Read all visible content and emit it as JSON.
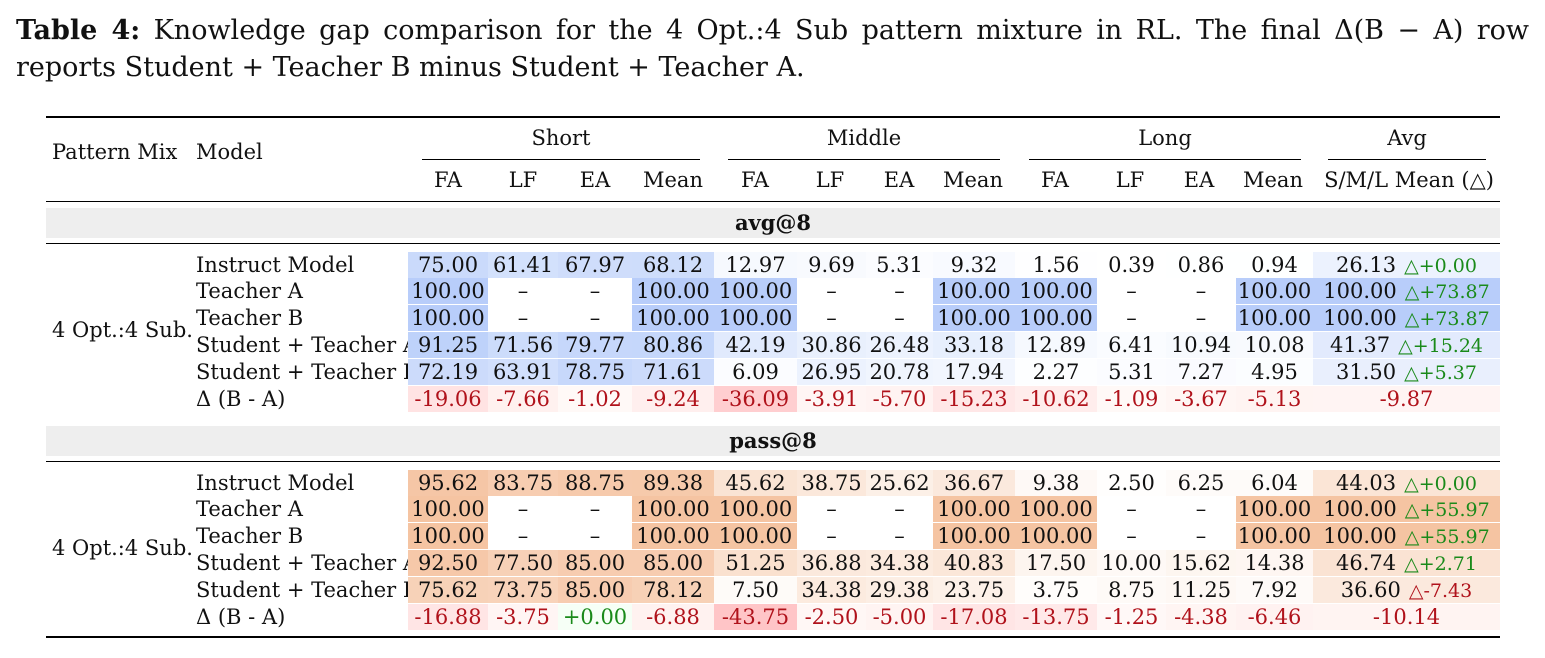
{
  "caption": {
    "label": "Table 4:",
    "text": " Knowledge gap comparison for the 4 Opt.:4 Sub pattern mixture in RL. The final Δ(B − A) row reports Student + Teacher B minus Student + Teacher A."
  },
  "header": {
    "pattern_mix": "Pattern Mix",
    "model": "Model",
    "groups": [
      "Short",
      "Middle",
      "Long",
      "Avg"
    ],
    "subcols": [
      "FA",
      "LF",
      "EA",
      "Mean",
      "FA",
      "LF",
      "EA",
      "Mean",
      "FA",
      "LF",
      "EA",
      "Mean"
    ],
    "avg_sub": "S/M/L Mean (△)"
  },
  "sections": [
    {
      "title": "avg@8",
      "pattern": "4 Opt.:4 Sub.",
      "rows": [
        {
          "model": "Instruct Model",
          "vals": [
            "75.00",
            "61.41",
            "67.97",
            "68.12",
            "12.97",
            "9.69",
            "5.31",
            "9.32",
            "1.56",
            "0.39",
            "0.86",
            "0.94"
          ],
          "avg": "26.13",
          "delta": "△+0.00"
        },
        {
          "model": "Teacher A",
          "vals": [
            "100.00",
            "–",
            "–",
            "100.00",
            "100.00",
            "–",
            "–",
            "100.00",
            "100.00",
            "–",
            "–",
            "100.00"
          ],
          "avg": "100.00",
          "delta": "△+73.87"
        },
        {
          "model": "Teacher B",
          "vals": [
            "100.00",
            "–",
            "–",
            "100.00",
            "100.00",
            "–",
            "–",
            "100.00",
            "100.00",
            "–",
            "–",
            "100.00"
          ],
          "avg": "100.00",
          "delta": "△+73.87"
        },
        {
          "model": "Student + Teacher A",
          "vals": [
            "91.25",
            "71.56",
            "79.77",
            "80.86",
            "42.19",
            "30.86",
            "26.48",
            "33.18",
            "12.89",
            "6.41",
            "10.94",
            "10.08"
          ],
          "avg": "41.37",
          "delta": "△+15.24"
        },
        {
          "model": "Student + Teacher B",
          "vals": [
            "72.19",
            "63.91",
            "78.75",
            "71.61",
            "6.09",
            "26.95",
            "20.78",
            "17.94",
            "2.27",
            "5.31",
            "7.27",
            "4.95"
          ],
          "avg": "31.50",
          "delta": "△+5.37"
        },
        {
          "model": "Δ (B - A)",
          "vals": [
            "-19.06",
            "-7.66",
            "-1.02",
            "-9.24",
            "-36.09",
            "-3.91",
            "-5.70",
            "-15.23",
            "-10.62",
            "-1.09",
            "-3.67",
            "-5.13"
          ],
          "avg": "-9.87",
          "delta": ""
        }
      ]
    },
    {
      "title": "pass@8",
      "pattern": "4 Opt.:4 Sub.",
      "rows": [
        {
          "model": "Instruct Model",
          "vals": [
            "95.62",
            "83.75",
            "88.75",
            "89.38",
            "45.62",
            "38.75",
            "25.62",
            "36.67",
            "9.38",
            "2.50",
            "6.25",
            "6.04"
          ],
          "avg": "44.03",
          "delta": "△+0.00"
        },
        {
          "model": "Teacher A",
          "vals": [
            "100.00",
            "–",
            "–",
            "100.00",
            "100.00",
            "–",
            "–",
            "100.00",
            "100.00",
            "–",
            "–",
            "100.00"
          ],
          "avg": "100.00",
          "delta": "△+55.97"
        },
        {
          "model": "Teacher B",
          "vals": [
            "100.00",
            "–",
            "–",
            "100.00",
            "100.00",
            "–",
            "–",
            "100.00",
            "100.00",
            "–",
            "–",
            "100.00"
          ],
          "avg": "100.00",
          "delta": "△+55.97"
        },
        {
          "model": "Student + Teacher A",
          "vals": [
            "92.50",
            "77.50",
            "85.00",
            "85.00",
            "51.25",
            "36.88",
            "34.38",
            "40.83",
            "17.50",
            "10.00",
            "15.62",
            "14.38"
          ],
          "avg": "46.74",
          "delta": "△+2.71"
        },
        {
          "model": "Student + Teacher B",
          "vals": [
            "75.62",
            "73.75",
            "85.00",
            "78.12",
            "7.50",
            "34.38",
            "29.38",
            "23.75",
            "3.75",
            "8.75",
            "11.25",
            "7.92"
          ],
          "avg": "36.60",
          "delta": "△-7.43"
        },
        {
          "model": "Δ (B - A)",
          "vals": [
            "-16.88",
            "-3.75",
            "+0.00",
            "-6.88",
            "-43.75",
            "-2.50",
            "-5.00",
            "-17.08",
            "-13.75",
            "-1.25",
            "-4.38",
            "-6.46"
          ],
          "avg": "-10.14",
          "delta": ""
        }
      ]
    }
  ]
}
